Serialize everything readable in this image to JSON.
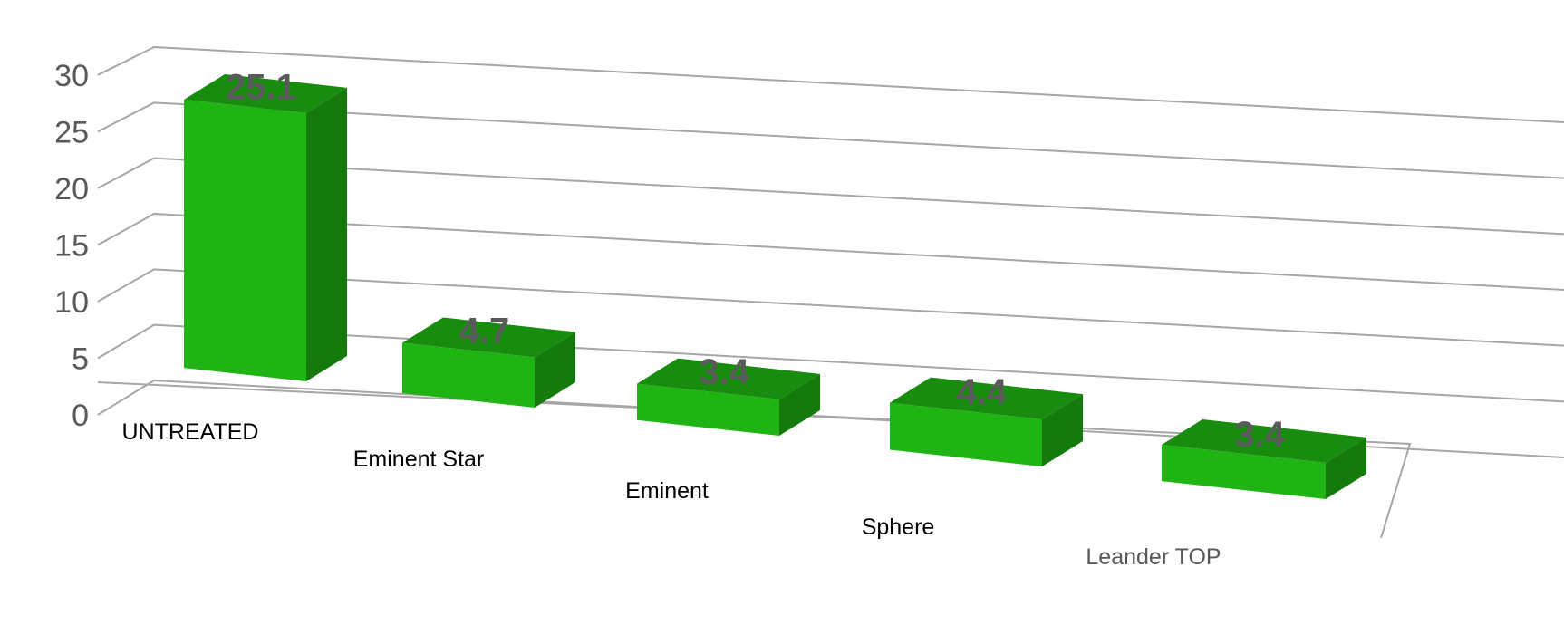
{
  "chart_data": {
    "type": "bar",
    "style": "3d-perspective-columns",
    "categories": [
      "UNTREATED",
      "Eminent Star",
      "Eminent",
      "Sphere",
      "Leander TOP"
    ],
    "values": [
      25.1,
      4.7,
      3.4,
      4.4,
      3.4
    ],
    "data_labels": [
      "25.1",
      "4.7",
      "3.4",
      "4.4",
      "3.4"
    ],
    "title": "",
    "xlabel": "",
    "ylabel": "",
    "ylim": [
      0,
      30
    ],
    "yticks": [
      "0",
      "5",
      "10",
      "15",
      "20",
      "25",
      "30"
    ],
    "grid": true,
    "legend": "none",
    "colors": {
      "front": "#1fb314",
      "top": "#188c0e",
      "side": "#137a0b",
      "grid": "#a6a6a6",
      "tick_text": "#595959",
      "category_text": "#000000"
    }
  }
}
